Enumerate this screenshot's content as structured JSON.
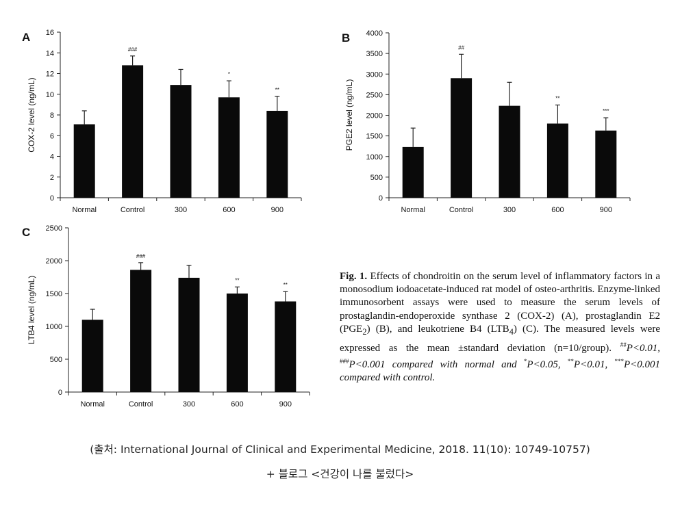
{
  "chart_data": [
    {
      "type": "bar",
      "panel": "A",
      "ylabel": "COX-2 level (ng/mL)",
      "categories": [
        "Normal",
        "Control",
        "300",
        "600",
        "900"
      ],
      "values": [
        7.1,
        12.8,
        10.9,
        9.7,
        8.4
      ],
      "errors": [
        1.3,
        0.9,
        1.5,
        1.6,
        1.4
      ],
      "significance": [
        "",
        "###",
        "",
        "*",
        "**"
      ],
      "ylim": [
        0,
        16
      ],
      "yticks": [
        0,
        2,
        4,
        6,
        8,
        10,
        12,
        14,
        16
      ]
    },
    {
      "type": "bar",
      "panel": "B",
      "ylabel": "PGE2 level (ng/mL)",
      "categories": [
        "Normal",
        "Control",
        "300",
        "600",
        "900"
      ],
      "values": [
        1230,
        2900,
        2230,
        1800,
        1630
      ],
      "errors": [
        460,
        580,
        570,
        450,
        310
      ],
      "significance": [
        "",
        "##",
        "",
        "**",
        "***"
      ],
      "ylim": [
        0,
        4000
      ],
      "yticks": [
        0,
        500,
        1000,
        1500,
        2000,
        2500,
        3000,
        3500,
        4000
      ]
    },
    {
      "type": "bar",
      "panel": "C",
      "ylabel": "LTB4 level (ng/mL)",
      "categories": [
        "Normal",
        "Control",
        "300",
        "600",
        "900"
      ],
      "values": [
        1100,
        1860,
        1740,
        1500,
        1380
      ],
      "errors": [
        160,
        110,
        190,
        100,
        150
      ],
      "significance": [
        "",
        "###",
        "",
        "**",
        "**"
      ],
      "ylim": [
        0,
        2500
      ],
      "yticks": [
        0,
        500,
        1000,
        1500,
        2000,
        2500
      ]
    }
  ],
  "caption": {
    "label": "Fig. 1.",
    "text": {
      "t1": " Effects of chondroitin on the serum level of inflammatory factors in a monosodium iodoacetate-induced rat model of osteo-arthritis. Enzyme-linked immunosorbent assays were used to measure the serum levels of prostaglandin-endoperoxide synthase 2 (COX-2) (A), prostaglandin E2 (PGE",
      "sub1": "2",
      "t2": ") (B), and leukotriene B4 (LTB",
      "sub2": "4",
      "t3": ") (C). The measured levels were expressed as the mean ±standard deviation (n=10/group). ",
      "sup1": "##",
      "t4": "P<0.01, ",
      "sup2": "###",
      "t5": "P<0.001 compared with normal and ",
      "sup3": "*",
      "t6": "P<0.05, ",
      "sup4": "**",
      "t7": "P<0.01, ",
      "sup5": "***",
      "t8": "P<0.001 compared with control."
    }
  },
  "source_line": "(출처: International Journal of Clinical and Experimental Medicine, 2018. 11(10): 10749-10757)",
  "blog_line": "+ 블로그 <건강이 나를 불렀다>"
}
